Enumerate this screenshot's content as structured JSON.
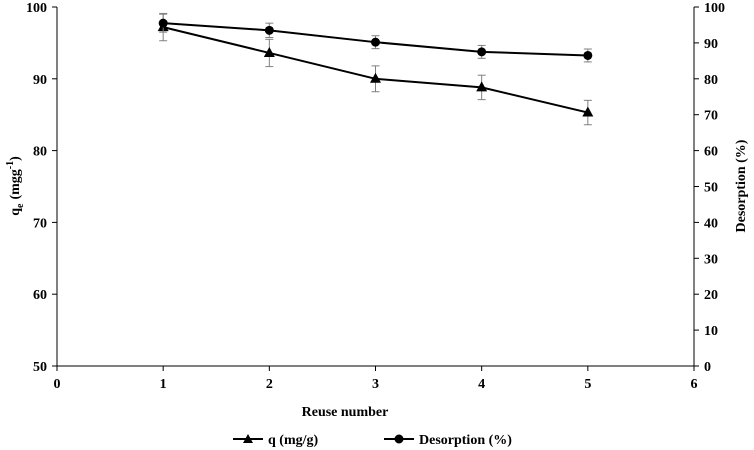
{
  "chart_data": {
    "type": "line",
    "x": [
      1,
      2,
      3,
      4,
      5
    ],
    "xlabel": "Reuse number",
    "xlim": [
      0,
      6
    ],
    "xticks": [
      "0",
      "1",
      "2",
      "3",
      "4",
      "5",
      "6"
    ],
    "ylabel_left_main": "q",
    "ylabel_left_sub": "e",
    "ylabel_left_unit": "(mgg",
    "ylabel_left_sup": "-1",
    "ylabel_left_close": ")",
    "ylim_left": [
      50,
      100
    ],
    "yticks_left": [
      "50",
      "60",
      "70",
      "80",
      "90",
      "100"
    ],
    "ylabel_right": "Desorption (%)",
    "ylim_right": [
      0,
      100
    ],
    "yticks_right": [
      "0",
      "10",
      "20",
      "30",
      "40",
      "50",
      "60",
      "70",
      "80",
      "90",
      "100"
    ],
    "grid": false,
    "legend_position": "bottom",
    "series": [
      {
        "name": "q (mg/g)",
        "axis": "left",
        "marker": "triangle",
        "values": [
          97.2,
          93.6,
          90.0,
          88.8,
          85.3
        ],
        "errors": [
          1.9,
          1.9,
          1.8,
          1.7,
          1.7
        ]
      },
      {
        "name": "Desorption (%)",
        "axis": "right",
        "marker": "circle",
        "values": [
          95.5,
          93.5,
          90.2,
          87.5,
          86.5
        ],
        "errors": [
          2.5,
          2.0,
          1.8,
          1.8,
          1.8
        ]
      }
    ]
  }
}
